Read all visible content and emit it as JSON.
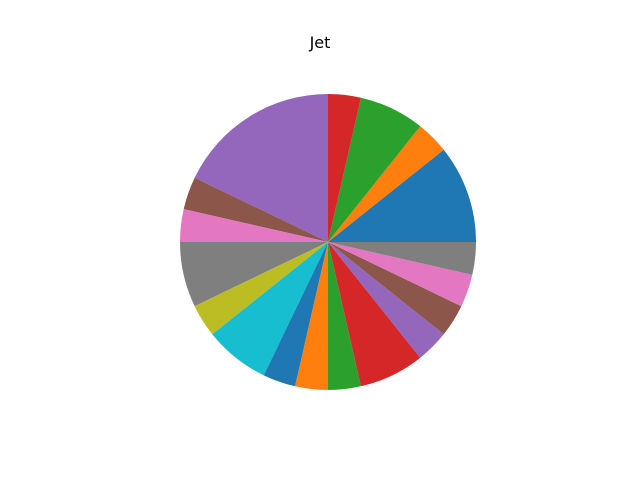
{
  "chart_data": {
    "type": "pie",
    "title": "Jet",
    "start_angle_deg": 0,
    "direction": "counterclockwise",
    "slices": [
      {
        "value": 3,
        "color": "#1f77b4"
      },
      {
        "value": 1,
        "color": "#ff7f0e"
      },
      {
        "value": 2,
        "color": "#2ca02c"
      },
      {
        "value": 1,
        "color": "#d62728"
      },
      {
        "value": 5,
        "color": "#9467bd"
      },
      {
        "value": 1,
        "color": "#8c564b"
      },
      {
        "value": 1,
        "color": "#e377c2"
      },
      {
        "value": 2,
        "color": "#7f7f7f"
      },
      {
        "value": 1,
        "color": "#bcbd22"
      },
      {
        "value": 2,
        "color": "#17becf"
      },
      {
        "value": 1,
        "color": "#1f77b4"
      },
      {
        "value": 1,
        "color": "#ff7f0e"
      },
      {
        "value": 1,
        "color": "#2ca02c"
      },
      {
        "value": 2,
        "color": "#d62728"
      },
      {
        "value": 1,
        "color": "#9467bd"
      },
      {
        "value": 1,
        "color": "#8c564b"
      },
      {
        "value": 1,
        "color": "#e377c2"
      },
      {
        "value": 1,
        "color": "#7f7f7f"
      }
    ]
  }
}
